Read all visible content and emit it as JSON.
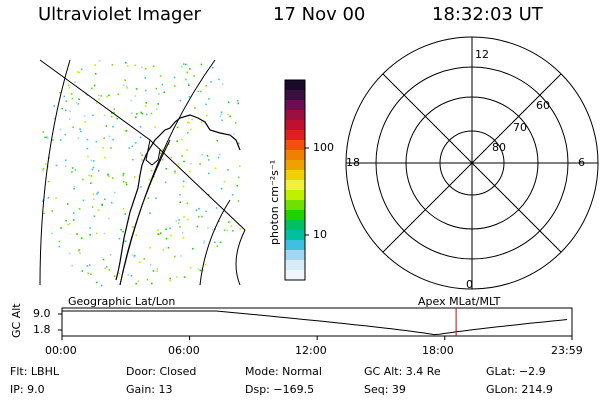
{
  "header": {
    "instrument": "Ultraviolet Imager",
    "date": "17 Nov 00",
    "time": "18:32:03 UT"
  },
  "colorbar": {
    "unit_label": "photon cm⁻²s⁻¹",
    "ticks": [
      "100",
      "10"
    ],
    "colors": [
      "#1a0a2a",
      "#3a1040",
      "#6a1050",
      "#9a1040",
      "#c01030",
      "#e02020",
      "#f05010",
      "#f08000",
      "#f0a000",
      "#f0d000",
      "#f0f040",
      "#c0f000",
      "#70e000",
      "#20d000",
      "#00c060",
      "#00c0a0",
      "#40c0e0",
      "#a0d8f0",
      "#d8ecf8",
      "#f0f6fc"
    ]
  },
  "polar": {
    "mlt_labels": {
      "top": "12",
      "left": "18",
      "right": "6",
      "bottom": "0"
    },
    "lat_labels": [
      "60",
      "70",
      "80"
    ]
  },
  "map_labels": {
    "left": "Geographic Lat/Lon",
    "right": "Apex MLat/MLT"
  },
  "orbit_plot": {
    "ylabel": "GC Alt",
    "yticks": [
      "9.0",
      "1.8"
    ],
    "xticks": [
      "00:00",
      "06:00",
      "12:00",
      "18:00",
      "23:59"
    ],
    "marker_time": "18:32:03",
    "marker_color": "#d00000"
  },
  "footer": {
    "filter": "Flt: LBHL",
    "ip": "IP: 9.0",
    "door": "Door: Closed",
    "gain": "Gain: 13",
    "mode": "Mode: Normal",
    "dsp": "Dsp: −169.5",
    "gc_alt": "GC Alt: 3.4 Re",
    "seq": "Seq: 39",
    "glat": "GLat: −2.9",
    "glon": "GLon: 214.9"
  }
}
